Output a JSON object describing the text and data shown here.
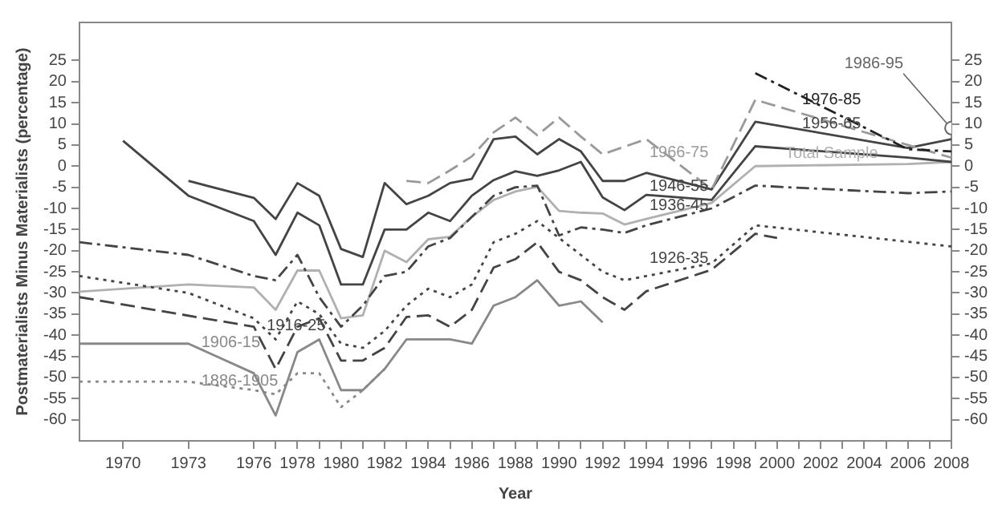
{
  "chart_data": {
    "type": "line",
    "xlabel": "Year",
    "ylabel": "Postmaterialists Minus Materialists (percentage)",
    "xlim": [
      1968,
      2008
    ],
    "xticks": [
      1970,
      1973,
      1976,
      {
        "value": 1977,
        "label": null
      },
      1978,
      {
        "value": 1979,
        "label": null
      },
      1980,
      {
        "value": 1981,
        "label": null
      },
      1982,
      {
        "value": 1983,
        "label": null
      },
      1984,
      {
        "value": 1985,
        "label": null
      },
      1986,
      {
        "value": 1987,
        "label": null
      },
      1988,
      {
        "value": 1989,
        "label": null
      },
      1990,
      {
        "value": 1991,
        "label": null
      },
      1992,
      {
        "value": 1993,
        "label": null
      },
      1994,
      {
        "value": 1995,
        "label": null
      },
      1996,
      {
        "value": 1997,
        "label": null
      },
      1998,
      {
        "value": 1999,
        "label": null
      },
      2000,
      {
        "value": 2001,
        "label": null
      },
      2002,
      {
        "value": 2003,
        "label": null
      },
      2004,
      {
        "value": 2005,
        "label": null
      },
      2006,
      {
        "value": 2007,
        "label": null
      },
      2008
    ],
    "ylim": [
      -65,
      34
    ],
    "yticks": [
      -60,
      -55,
      -50,
      -45,
      -40,
      -35,
      -30,
      -25,
      -20,
      -15,
      -10,
      -5,
      0,
      5,
      10,
      15,
      20,
      25
    ],
    "y2lim": [
      -65,
      34
    ],
    "y2ticks": [
      -60,
      -55,
      -50,
      -45,
      -40,
      -35,
      -30,
      -25,
      -20,
      -15,
      -10,
      -5,
      0,
      5,
      10,
      15,
      20,
      25
    ],
    "grid": false,
    "legend": false,
    "marker": "none",
    "series": [
      {
        "name": "1976-85",
        "color": "#222222",
        "line_style": "dashdot",
        "x": [
          1999,
          2006,
          2008
        ],
        "values": [
          22,
          4,
          3.5
        ]
      },
      {
        "name": "1986-95",
        "color": "#666666",
        "marker": "circle",
        "x": [
          2008
        ],
        "values": [
          9
        ]
      },
      {
        "name": "1966-75",
        "color": "#999999",
        "line_style": "dashed",
        "x": [
          1983,
          1984,
          1985,
          1986,
          1987,
          1988,
          1989,
          1990,
          1991,
          1992,
          1994,
          1997,
          1999,
          2006,
          2008
        ],
        "values": [
          -3.5,
          -4,
          -1,
          2.3,
          8,
          11.5,
          7.3,
          11.5,
          7,
          2.8,
          6.4,
          -5.5,
          15.7,
          5,
          2
        ]
      },
      {
        "name": "1956-65",
        "color": "#444444",
        "line_style": "solid",
        "x": [
          1973,
          1976,
          1977,
          1978,
          1979,
          1980,
          1981,
          1982,
          1983,
          1984,
          1985,
          1986,
          1987,
          1988,
          1989,
          1990,
          1991,
          1992,
          1993,
          1994,
          1997,
          1999,
          2006,
          2008
        ],
        "values": [
          -3.5,
          -7.5,
          -12.5,
          -4,
          -7,
          -19.6,
          -21.5,
          -4,
          -9,
          -7,
          -4,
          -3,
          6.4,
          7,
          2.8,
          6.4,
          3.5,
          -3.5,
          -3.5,
          -1.6,
          -5.5,
          10.5,
          4.3,
          6.4
        ]
      },
      {
        "name": "1946-55",
        "color": "#444444",
        "line_style": "solid",
        "x": [
          1970,
          1973,
          1976,
          1977,
          1978,
          1979,
          1980,
          1981,
          1982,
          1983,
          1984,
          1985,
          1986,
          1987,
          1988,
          1989,
          1990,
          1991,
          1992,
          1993,
          1994,
          1997,
          1999,
          2006,
          2008
        ],
        "values": [
          6,
          -7,
          -13,
          -21,
          -11,
          -14,
          -28,
          -28,
          -15,
          -15,
          -11,
          -13,
          -7,
          -3.3,
          -1.2,
          -2.3,
          -1,
          1,
          -7.4,
          -10.4,
          -6.8,
          -8,
          4.7,
          2,
          1
        ]
      },
      {
        "name": "1936-45",
        "color": "#444444",
        "line_style": "dashdot",
        "x": [
          1968,
          1973,
          1976,
          1977,
          1978,
          1979,
          1980,
          1981,
          1982,
          1983,
          1984,
          1985,
          1986,
          1987,
          1988,
          1989,
          1990,
          1991,
          1992,
          1993,
          1994,
          1997,
          1999,
          2006,
          2008
        ],
        "values": [
          -18,
          -21,
          -26,
          -27,
          -21,
          -31,
          -38,
          -33,
          -26,
          -25,
          -19,
          -17,
          -12,
          -7,
          -5,
          -4.6,
          -16.4,
          -14.5,
          -15,
          -15.8,
          -14,
          -10,
          -4.6,
          -6.4,
          -6
        ]
      },
      {
        "name": "1926-35",
        "color": "#444444",
        "line_style": "dotted",
        "x": [
          1968,
          1973,
          1976,
          1977,
          1978,
          1979,
          1980,
          1981,
          1982,
          1983,
          1984,
          1985,
          1986,
          1987,
          1988,
          1989,
          1990,
          1991,
          1992,
          1993,
          1994,
          1997,
          1999,
          2008
        ],
        "values": [
          -26,
          -30,
          -36,
          -41,
          -32,
          -35,
          -42,
          -43,
          -39,
          -33,
          -29,
          -31,
          -28,
          -18,
          -16,
          -13,
          -17,
          -21,
          -25,
          -27,
          -26,
          -23,
          -14,
          -19
        ]
      },
      {
        "name": "1916-25",
        "color": "#444444",
        "line_style": "dashed",
        "x": [
          1968,
          1976,
          1977,
          1978,
          1979,
          1980,
          1981,
          1982,
          1983,
          1984,
          1985,
          1986,
          1987,
          1988,
          1989,
          1990,
          1991,
          1992,
          1993,
          1994,
          1997,
          1999,
          2000
        ],
        "values": [
          -31,
          -38,
          -48,
          -38,
          -36,
          -46,
          -46,
          -43,
          -35.7,
          -35.3,
          -38,
          -34,
          -24,
          -22,
          -18,
          -25,
          -27,
          -31,
          -34,
          -29.6,
          -24.5,
          -16,
          -17
        ]
      },
      {
        "name": "1906-15",
        "color": "#888888",
        "line_style": "solid",
        "x": [
          1968,
          1973,
          1976,
          1977,
          1978,
          1979,
          1980,
          1981,
          1982,
          1983,
          1984,
          1985,
          1986,
          1987,
          1988,
          1989,
          1990,
          1991,
          1992
        ],
        "values": [
          -42,
          -42,
          -49,
          -59,
          -44,
          -41,
          -53,
          -53,
          -48,
          -41,
          -41,
          -41,
          -42,
          -33,
          -31,
          -27,
          -33,
          -32,
          -37
        ]
      },
      {
        "name": "1886-1905",
        "color": "#888888",
        "line_style": "dotted",
        "x": [
          1968,
          1973,
          1976,
          1977,
          1978,
          1979,
          1980,
          1981,
          1982
        ],
        "values": [
          -51,
          -51,
          -53,
          -54,
          -49,
          -49,
          -57,
          -53,
          -48
        ]
      },
      {
        "name": "Total Sample",
        "color": "#b0b0b0",
        "line_style": "solid",
        "x": [
          1968,
          1973,
          1976,
          1977,
          1978,
          1979,
          1980,
          1981,
          1982,
          1983,
          1984,
          1985,
          1986,
          1987,
          1988,
          1989,
          1990,
          1991,
          1992,
          1993,
          1994,
          1997,
          1999,
          2006,
          2008
        ],
        "values": [
          -29.7,
          -28,
          -28.7,
          -34,
          -24.7,
          -24.7,
          -36,
          -35.3,
          -20,
          -22.7,
          -17.3,
          -16.7,
          -12,
          -8,
          -6,
          -4.9,
          -10.6,
          -11,
          -11.2,
          -13.8,
          -12.5,
          -8.7,
          0,
          0.5,
          1
        ]
      }
    ]
  }
}
